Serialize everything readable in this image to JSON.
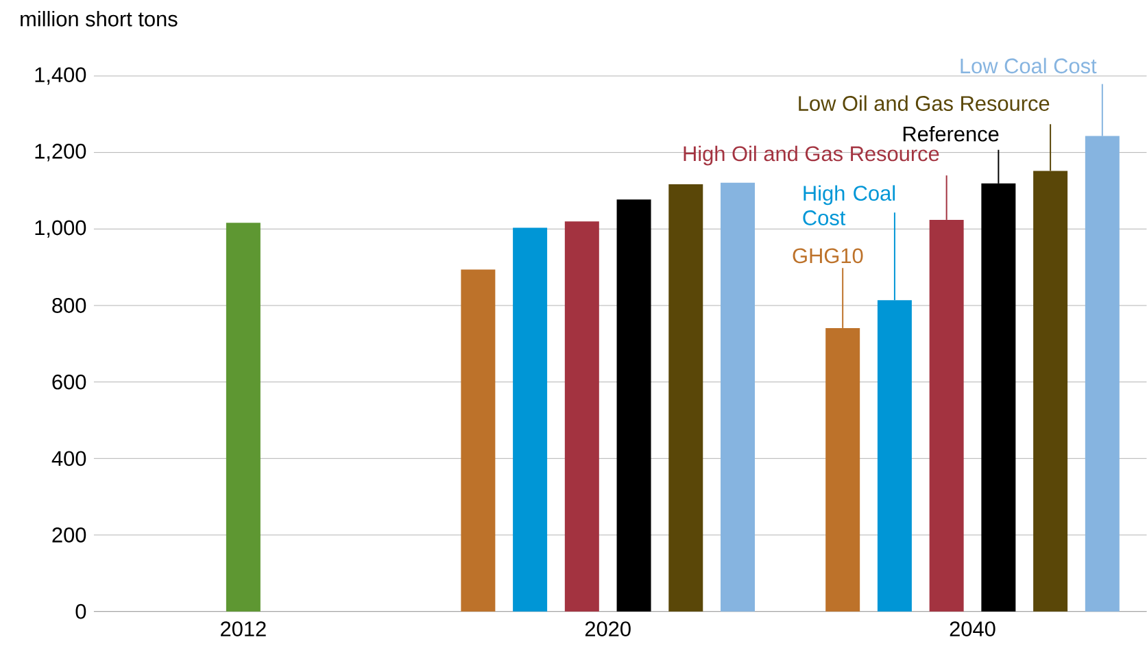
{
  "chart_data": {
    "type": "bar",
    "ylabel": "million short tons",
    "categories": [
      "2012",
      "2020",
      "2040"
    ],
    "series": [
      {
        "color": "#5e9732",
        "values": [
          1016,
          null,
          null
        ]
      },
      {
        "name": "GHG10",
        "color": "#bd722a",
        "values": [
          null,
          894,
          741
        ]
      },
      {
        "name": "High Coal Cost",
        "color": "#0096d6",
        "values": [
          null,
          1003,
          814
        ]
      },
      {
        "name": "High Oil and Gas Resource",
        "color": "#a33340",
        "values": [
          null,
          1020,
          1024
        ]
      },
      {
        "name": "Reference",
        "color": "#000000",
        "values": [
          null,
          1077,
          1119
        ]
      },
      {
        "name": "Low Oil and Gas Resource",
        "color": "#5a4708",
        "values": [
          null,
          1117,
          1152
        ]
      },
      {
        "name": "Low Coal Cost",
        "color": "#86b4e0",
        "values": [
          null,
          1121,
          1243
        ]
      }
    ],
    "ylim": [
      0,
      1400
    ],
    "yticks": [
      0,
      200,
      400,
      600,
      800,
      {
        "value": 1000,
        "label": "1,000"
      },
      {
        "value": 1200,
        "label": "1,200"
      },
      {
        "value": 1400,
        "label": "1,400"
      }
    ],
    "grid": "y"
  }
}
